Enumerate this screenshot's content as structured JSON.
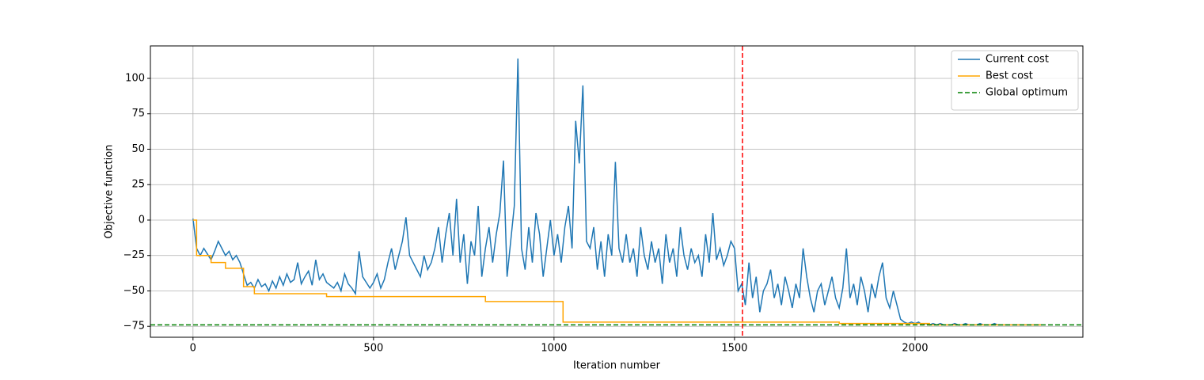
{
  "chart_data": {
    "type": "line",
    "xlabel": "Iteration number",
    "ylabel": "Objective function",
    "xlim": [
      -118,
      2465
    ],
    "ylim": [
      -82.7,
      122.9
    ],
    "xticks": [
      0,
      500,
      1000,
      1500,
      2000
    ],
    "yticks": [
      {
        "value": -75,
        "label": "−75"
      },
      {
        "value": -50,
        "label": "−50"
      },
      {
        "value": -25,
        "label": "−25"
      },
      0,
      25,
      50,
      75,
      100
    ],
    "grid": true,
    "legend": "upper right",
    "series": [
      {
        "name": "Current cost",
        "color": "#1f77b4",
        "x": [
          0,
          10,
          20,
          30,
          40,
          50,
          60,
          70,
          80,
          90,
          100,
          110,
          120,
          130,
          140,
          150,
          160,
          170,
          180,
          190,
          200,
          210,
          220,
          230,
          240,
          250,
          260,
          270,
          280,
          290,
          300,
          310,
          320,
          330,
          340,
          350,
          360,
          370,
          380,
          390,
          400,
          410,
          420,
          430,
          440,
          450,
          460,
          470,
          480,
          490,
          500,
          510,
          520,
          530,
          540,
          550,
          560,
          570,
          580,
          590,
          600,
          610,
          620,
          630,
          640,
          650,
          660,
          670,
          680,
          690,
          700,
          710,
          720,
          730,
          740,
          750,
          760,
          770,
          780,
          790,
          800,
          810,
          820,
          830,
          840,
          850,
          860,
          870,
          880,
          890,
          900,
          910,
          920,
          930,
          940,
          950,
          960,
          970,
          980,
          990,
          1000,
          1010,
          1020,
          1030,
          1040,
          1050,
          1060,
          1070,
          1080,
          1090,
          1100,
          1110,
          1120,
          1130,
          1140,
          1150,
          1160,
          1170,
          1180,
          1190,
          1200,
          1210,
          1220,
          1230,
          1240,
          1250,
          1260,
          1270,
          1280,
          1290,
          1300,
          1310,
          1320,
          1330,
          1340,
          1350,
          1360,
          1370,
          1380,
          1390,
          1400,
          1410,
          1420,
          1430,
          1440,
          1450,
          1460,
          1470,
          1480,
          1490,
          1500,
          1510,
          1520,
          1530,
          1540,
          1550,
          1560,
          1570,
          1580,
          1590,
          1600,
          1610,
          1620,
          1630,
          1640,
          1650,
          1660,
          1670,
          1680,
          1690,
          1700,
          1710,
          1720,
          1730,
          1740,
          1750,
          1760,
          1770,
          1780,
          1790,
          1800,
          1810,
          1820,
          1830,
          1840,
          1850,
          1860,
          1870,
          1880,
          1890,
          1900,
          1910,
          1920,
          1930,
          1940,
          1950,
          1960,
          1970,
          1980,
          1990,
          2000,
          2010,
          2020,
          2030,
          2040,
          2050,
          2060,
          2070,
          2080,
          2090,
          2100,
          2110,
          2120,
          2130,
          2140,
          2150,
          2160,
          2170,
          2180,
          2190,
          2200,
          2210,
          2220,
          2230,
          2240,
          2250,
          2260,
          2270,
          2280,
          2290,
          2300,
          2310,
          2320,
          2330,
          2340,
          2350
        ],
        "values": [
          1,
          -20,
          -25,
          -20,
          -24,
          -28,
          -22,
          -15,
          -20,
          -25,
          -22,
          -28,
          -25,
          -30,
          -38,
          -46,
          -44,
          -48,
          -42,
          -47,
          -45,
          -50,
          -43,
          -48,
          -40,
          -46,
          -38,
          -44,
          -42,
          -30,
          -45,
          -40,
          -36,
          -46,
          -28,
          -42,
          -38,
          -44,
          -46,
          -48,
          -44,
          -50,
          -38,
          -45,
          -48,
          -52,
          -22,
          -40,
          -44,
          -48,
          -44,
          -38,
          -48,
          -42,
          -30,
          -20,
          -35,
          -25,
          -15,
          2,
          -25,
          -30,
          -35,
          -40,
          -25,
          -35,
          -30,
          -20,
          -5,
          -30,
          -10,
          5,
          -25,
          15,
          -30,
          -10,
          -45,
          -15,
          -25,
          10,
          -40,
          -20,
          -5,
          -30,
          -10,
          5,
          42,
          -40,
          -15,
          10,
          114,
          -20,
          -35,
          -5,
          -30,
          5,
          -10,
          -40,
          -20,
          0,
          -25,
          -10,
          -30,
          -5,
          10,
          -20,
          70,
          40,
          95,
          -15,
          -20,
          -5,
          -35,
          -15,
          -40,
          -10,
          -25,
          41,
          -20,
          -30,
          -10,
          -30,
          -20,
          -40,
          -5,
          -25,
          -35,
          -15,
          -30,
          -20,
          -45,
          -10,
          -30,
          -20,
          -40,
          -5,
          -25,
          -35,
          -20,
          -30,
          -25,
          -40,
          -10,
          -30,
          5,
          -28,
          -20,
          -32,
          -25,
          -15,
          -20,
          -50,
          -45,
          -60,
          -30,
          -55,
          -40,
          -65,
          -50,
          -45,
          -35,
          -55,
          -45,
          -60,
          -40,
          -50,
          -62,
          -45,
          -55,
          -20,
          -40,
          -55,
          -65,
          -50,
          -45,
          -60,
          -50,
          -40,
          -55,
          -62,
          -48,
          -20,
          -55,
          -45,
          -60,
          -40,
          -50,
          -65,
          -45,
          -55,
          -40,
          -30,
          -55,
          -62,
          -50,
          -60,
          -70,
          -72,
          -73,
          -72,
          -73,
          -72,
          -74,
          -73,
          -74,
          -73,
          -74,
          -73,
          -74,
          -74,
          -74,
          -73,
          -74,
          -74,
          -73,
          -74,
          -74,
          -74,
          -73,
          -74,
          -74,
          -74,
          -73,
          -74,
          -74,
          -74,
          -74,
          -74,
          -74,
          -74,
          -74,
          -74,
          -74,
          -74,
          -74,
          -74
        ]
      },
      {
        "name": "Best cost",
        "color": "orange",
        "x": [
          0,
          10,
          10,
          50,
          50,
          90,
          90,
          140,
          140,
          170,
          170,
          370,
          370,
          810,
          810,
          1025,
          1025,
          1790,
          1790,
          2040,
          2040,
          2350
        ],
        "values": [
          0,
          0,
          -25,
          -25,
          -30,
          -30,
          -34,
          -34,
          -47,
          -47,
          -52,
          -52,
          -54,
          -54,
          -57.5,
          -57.5,
          -72,
          -72,
          -73,
          -73,
          -74,
          -74
        ]
      }
    ],
    "hline": {
      "name": "Global optimum",
      "value": -74,
      "color": "green",
      "dashed": true
    },
    "vline": {
      "value": 1522,
      "color": "red",
      "dashed": true
    }
  }
}
